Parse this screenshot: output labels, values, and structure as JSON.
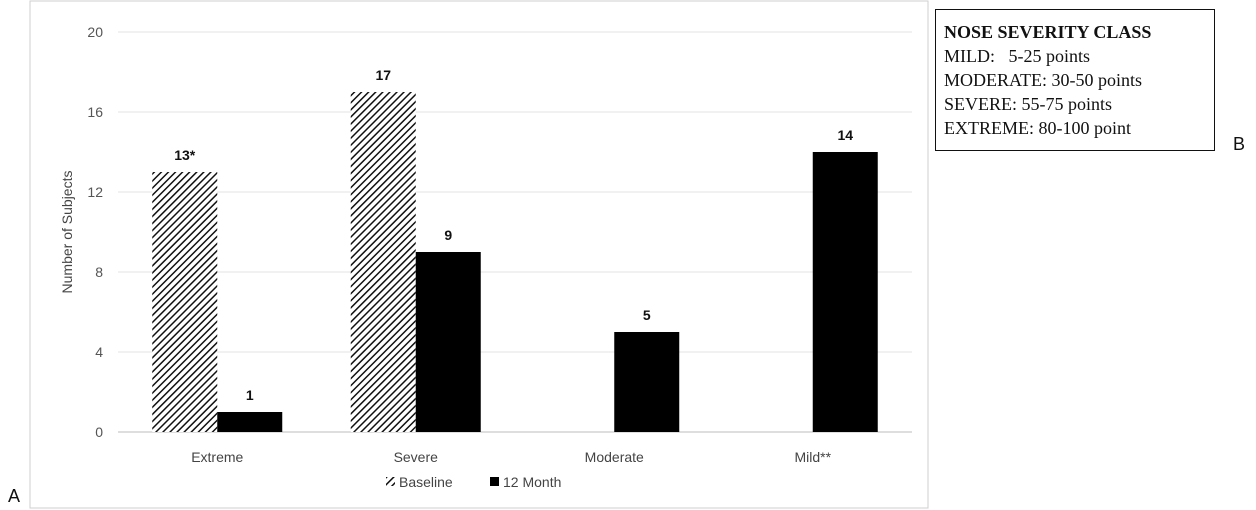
{
  "panel_labels": {
    "a": "A",
    "b": "B"
  },
  "chart_data": {
    "type": "bar",
    "categories": [
      "Extreme",
      "Severe",
      "Moderate",
      "Mild**"
    ],
    "series": [
      {
        "name": "Baseline",
        "values": [
          13,
          17,
          0,
          0
        ],
        "data_labels": [
          "13*",
          "17",
          "",
          ""
        ],
        "color": "#000000",
        "pattern": "diagonal-hatch"
      },
      {
        "name": "12 Month",
        "values": [
          1,
          9,
          5,
          14
        ],
        "data_labels": [
          "1",
          "9",
          "5",
          "14"
        ],
        "color": "#000000",
        "pattern": "solid"
      }
    ],
    "ylabel": "Number of Subjects",
    "xlabel": "",
    "ylim": [
      0,
      20
    ],
    "yticks": [
      0,
      4,
      8,
      12,
      16,
      20
    ],
    "grid": true,
    "legend_position": "bottom"
  },
  "severity_box": {
    "title": "NOSE SEVERITY CLASS",
    "lines": [
      "MILD:   5-25 points",
      "MODERATE: 30-50 points",
      "SEVERE: 55-75 points",
      "EXTREME: 80-100 point"
    ]
  }
}
